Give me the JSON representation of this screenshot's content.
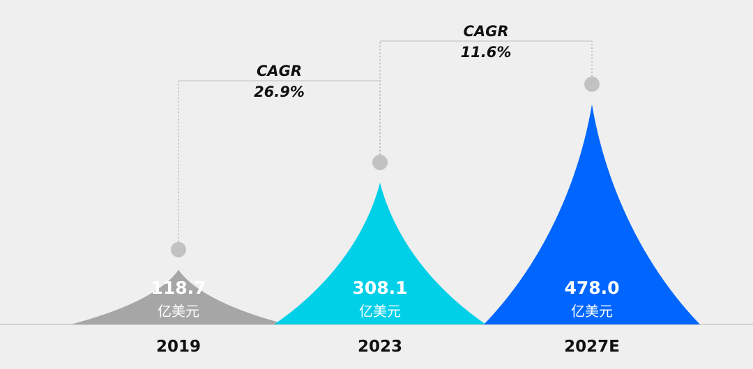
{
  "chart_data": {
    "type": "bar",
    "categories": [
      "2019",
      "2023",
      "2027E"
    ],
    "values": [
      118.7,
      308.1,
      478.0
    ],
    "value_labels": [
      "118.7",
      "308.1",
      "478.0"
    ],
    "unit_label": "亿美元",
    "colors": [
      "#a6a6a6",
      "#00cfe8",
      "#0066ff"
    ],
    "annotations": [
      {
        "from": "2019",
        "to": "2023",
        "label": "CAGR",
        "value": "26.9%"
      },
      {
        "from": "2023",
        "to": "2027E",
        "label": "CAGR",
        "value": "11.6%"
      }
    ],
    "grid": false,
    "legend": "none"
  }
}
